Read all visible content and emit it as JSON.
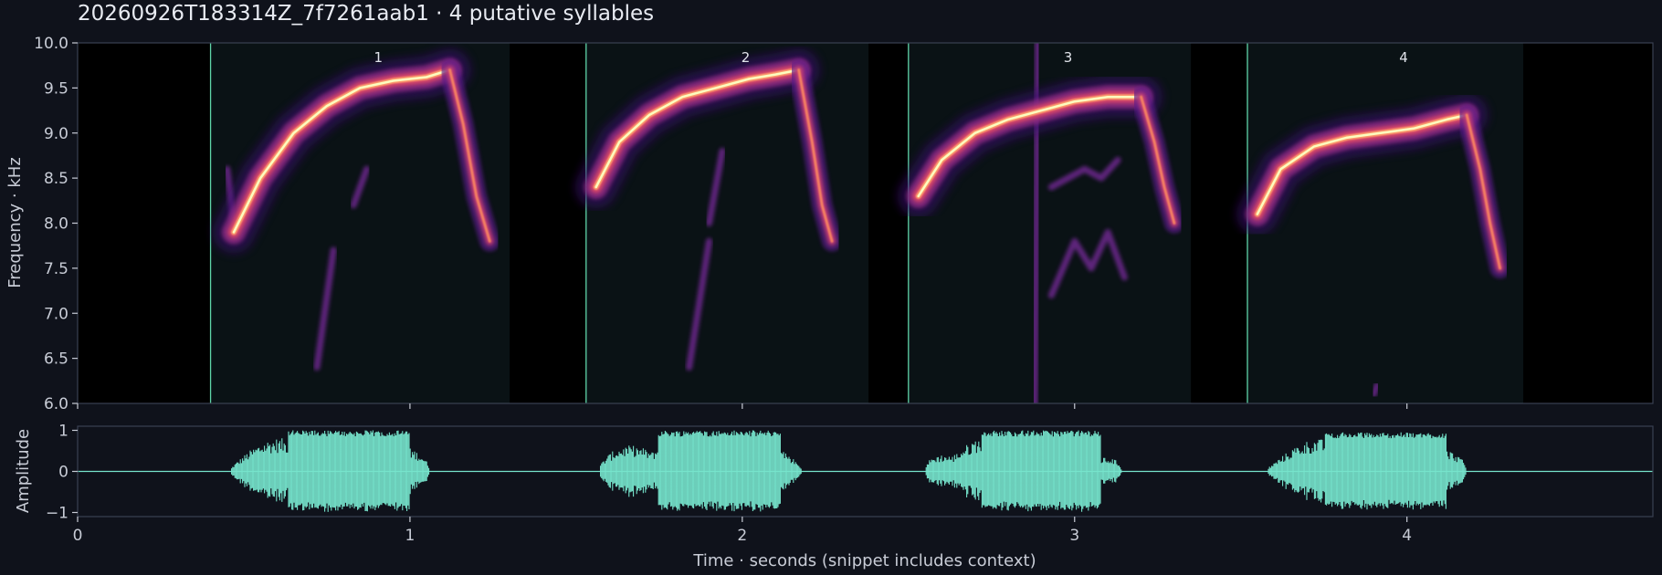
{
  "title": "20260926T183314Z_7f7261aab1  ·  4 putative syllables",
  "colors": {
    "background": "#0f121b",
    "plot_background": "#000000",
    "syllable_region": "#0a1215",
    "boundary": "#5fd4a8",
    "waveform": "#76e4cc",
    "text": "#c8ccd6"
  },
  "chart_data": [
    {
      "type": "heatmap",
      "name": "spectrogram",
      "xlim": [
        0,
        4.74
      ],
      "ylim": [
        6.0,
        10.0
      ],
      "ylabel": "Frequency · kHz",
      "yticks": [
        "6.0",
        "6.5",
        "7.0",
        "7.5",
        "8.0",
        "8.5",
        "9.0",
        "9.5",
        "10.0"
      ],
      "colormap": "magma",
      "syllables": [
        {
          "label": "1",
          "start": 0.4,
          "end": 1.3,
          "main": [
            [
              0.47,
              7.9
            ],
            [
              0.55,
              8.5
            ],
            [
              0.65,
              9.0
            ],
            [
              0.75,
              9.3
            ],
            [
              0.85,
              9.5
            ],
            [
              0.95,
              9.58
            ],
            [
              1.05,
              9.62
            ],
            [
              1.12,
              9.7
            ]
          ],
          "tail": [
            [
              1.12,
              9.7
            ],
            [
              1.16,
              9.1
            ],
            [
              1.2,
              8.3
            ],
            [
              1.24,
              7.8
            ]
          ],
          "ghosts": [
            [
              [
                0.72,
                6.4
              ],
              [
                0.77,
                7.7
              ]
            ],
            [
              [
                0.83,
                8.2
              ],
              [
                0.87,
                8.6
              ]
            ],
            [
              [
                0.47,
                8.0
              ],
              [
                0.45,
                8.6
              ]
            ]
          ]
        },
        {
          "label": "2",
          "start": 1.53,
          "end": 2.38,
          "main": [
            [
              1.56,
              8.4
            ],
            [
              1.63,
              8.9
            ],
            [
              1.72,
              9.2
            ],
            [
              1.82,
              9.4
            ],
            [
              1.92,
              9.5
            ],
            [
              2.02,
              9.6
            ],
            [
              2.1,
              9.65
            ],
            [
              2.17,
              9.7
            ]
          ],
          "tail": [
            [
              2.17,
              9.7
            ],
            [
              2.21,
              8.9
            ],
            [
              2.24,
              8.2
            ],
            [
              2.27,
              7.8
            ]
          ],
          "ghosts": [
            [
              [
                1.84,
                6.4
              ],
              [
                1.9,
                7.8
              ]
            ],
            [
              [
                1.9,
                8.0
              ],
              [
                1.94,
                8.8
              ]
            ]
          ]
        },
        {
          "label": "3",
          "start": 2.5,
          "end": 3.35,
          "main": [
            [
              2.53,
              8.3
            ],
            [
              2.6,
              8.7
            ],
            [
              2.7,
              9.0
            ],
            [
              2.8,
              9.15
            ],
            [
              2.9,
              9.25
            ],
            [
              3.0,
              9.35
            ],
            [
              3.1,
              9.4
            ],
            [
              3.2,
              9.4
            ]
          ],
          "tail": [
            [
              3.2,
              9.4
            ],
            [
              3.24,
              8.9
            ],
            [
              3.27,
              8.4
            ],
            [
              3.3,
              8.0
            ]
          ],
          "ghosts": [
            [
              [
                2.88,
                6.0
              ],
              [
                2.89,
                10.0
              ]
            ],
            [
              [
                2.93,
                8.4
              ],
              [
                3.03,
                8.6
              ],
              [
                3.08,
                8.5
              ],
              [
                3.13,
                8.7
              ]
            ],
            [
              [
                2.93,
                7.2
              ],
              [
                3.0,
                7.8
              ],
              [
                3.05,
                7.5
              ],
              [
                3.1,
                7.9
              ],
              [
                3.15,
                7.4
              ]
            ]
          ]
        },
        {
          "label": "4",
          "start": 3.52,
          "end": 4.35,
          "main": [
            [
              3.55,
              8.1
            ],
            [
              3.62,
              8.6
            ],
            [
              3.72,
              8.85
            ],
            [
              3.82,
              8.95
            ],
            [
              3.92,
              9.0
            ],
            [
              4.02,
              9.05
            ],
            [
              4.12,
              9.15
            ],
            [
              4.18,
              9.2
            ]
          ],
          "tail": [
            [
              4.18,
              9.2
            ],
            [
              4.22,
              8.6
            ],
            [
              4.25,
              8.0
            ],
            [
              4.28,
              7.5
            ]
          ],
          "ghosts": [
            [
              [
                3.9,
                6.1
              ],
              [
                3.91,
                6.2
              ]
            ]
          ]
        }
      ]
    },
    {
      "type": "line",
      "name": "waveform",
      "xlabel": "Time · seconds (snippet includes context)",
      "ylabel": "Amplitude",
      "xlim": [
        0,
        4.74
      ],
      "ylim": [
        -1.1,
        1.1
      ],
      "xticks": [
        "0",
        "1",
        "2",
        "3",
        "4"
      ],
      "yticks": [
        "−1",
        "0",
        "1"
      ],
      "envelopes": [
        {
          "start": 0.46,
          "end": 1.15,
          "peak": 1.0
        },
        {
          "start": 1.57,
          "end": 2.27,
          "peak": 1.0
        },
        {
          "start": 2.55,
          "end": 3.23,
          "peak": 1.0
        },
        {
          "start": 3.58,
          "end": 4.27,
          "peak": 0.95
        }
      ]
    }
  ]
}
